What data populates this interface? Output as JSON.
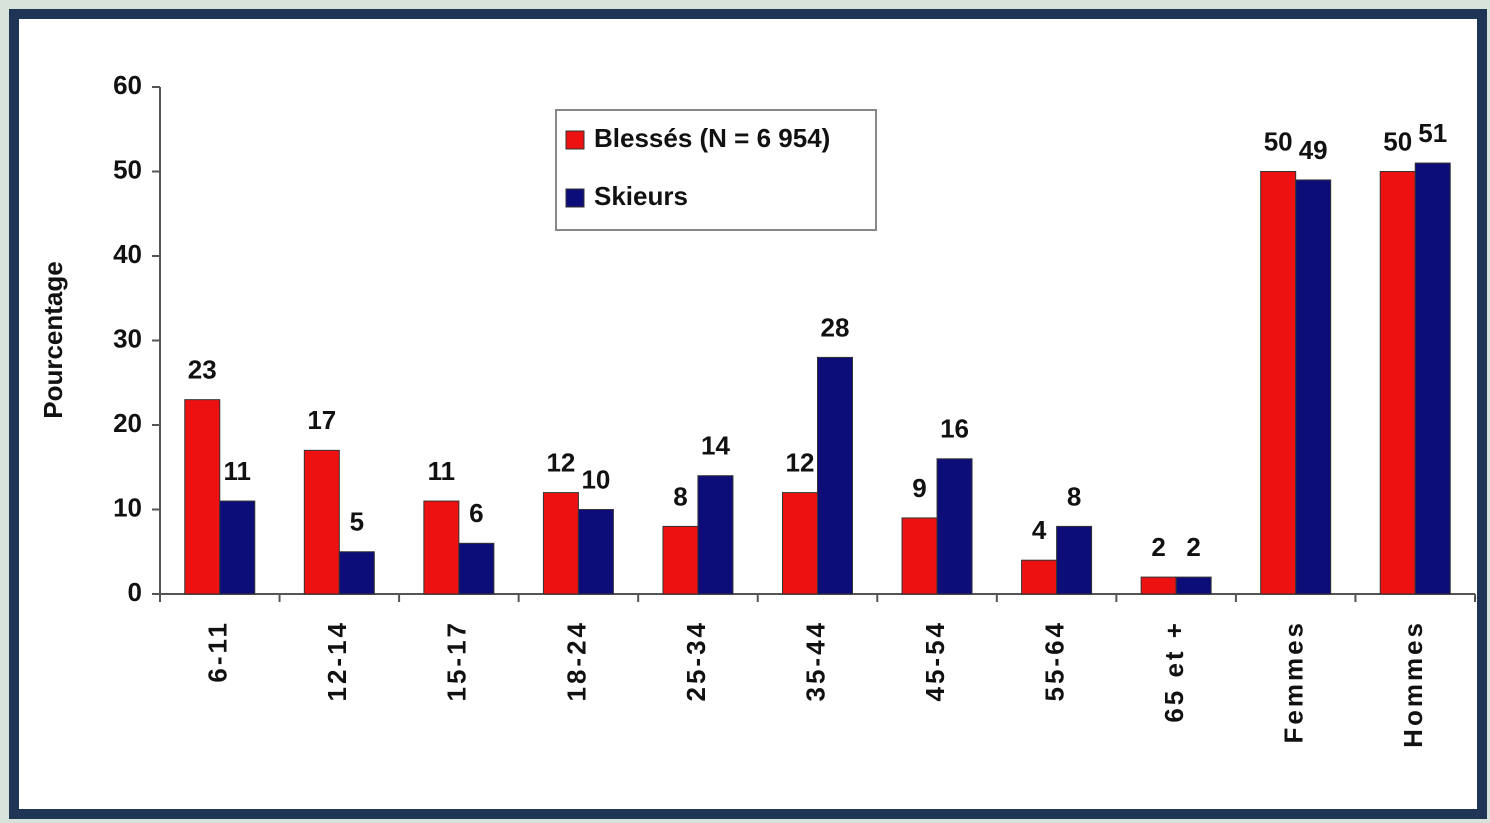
{
  "chart_data": {
    "type": "bar",
    "ylabel": "Pourcentage",
    "categories": [
      "6-11",
      "12-14",
      "15-17",
      "18-24",
      "25-34",
      "35-44",
      "45-54",
      "55-64",
      "65 et +",
      "Femmes",
      "Hommes"
    ],
    "series": [
      {
        "name": "Blessés (N = 6 954)",
        "color": "#ee1111",
        "values": [
          23,
          17,
          11,
          12,
          8,
          12,
          9,
          4,
          2,
          50,
          50
        ]
      },
      {
        "name": "Skieurs",
        "color": "#0d0d7a",
        "values": [
          11,
          5,
          6,
          10,
          14,
          28,
          16,
          8,
          2,
          49,
          51
        ]
      }
    ],
    "ylim": [
      0,
      60
    ],
    "yticks": [
      0,
      10,
      20,
      30,
      40,
      50,
      60
    ]
  }
}
